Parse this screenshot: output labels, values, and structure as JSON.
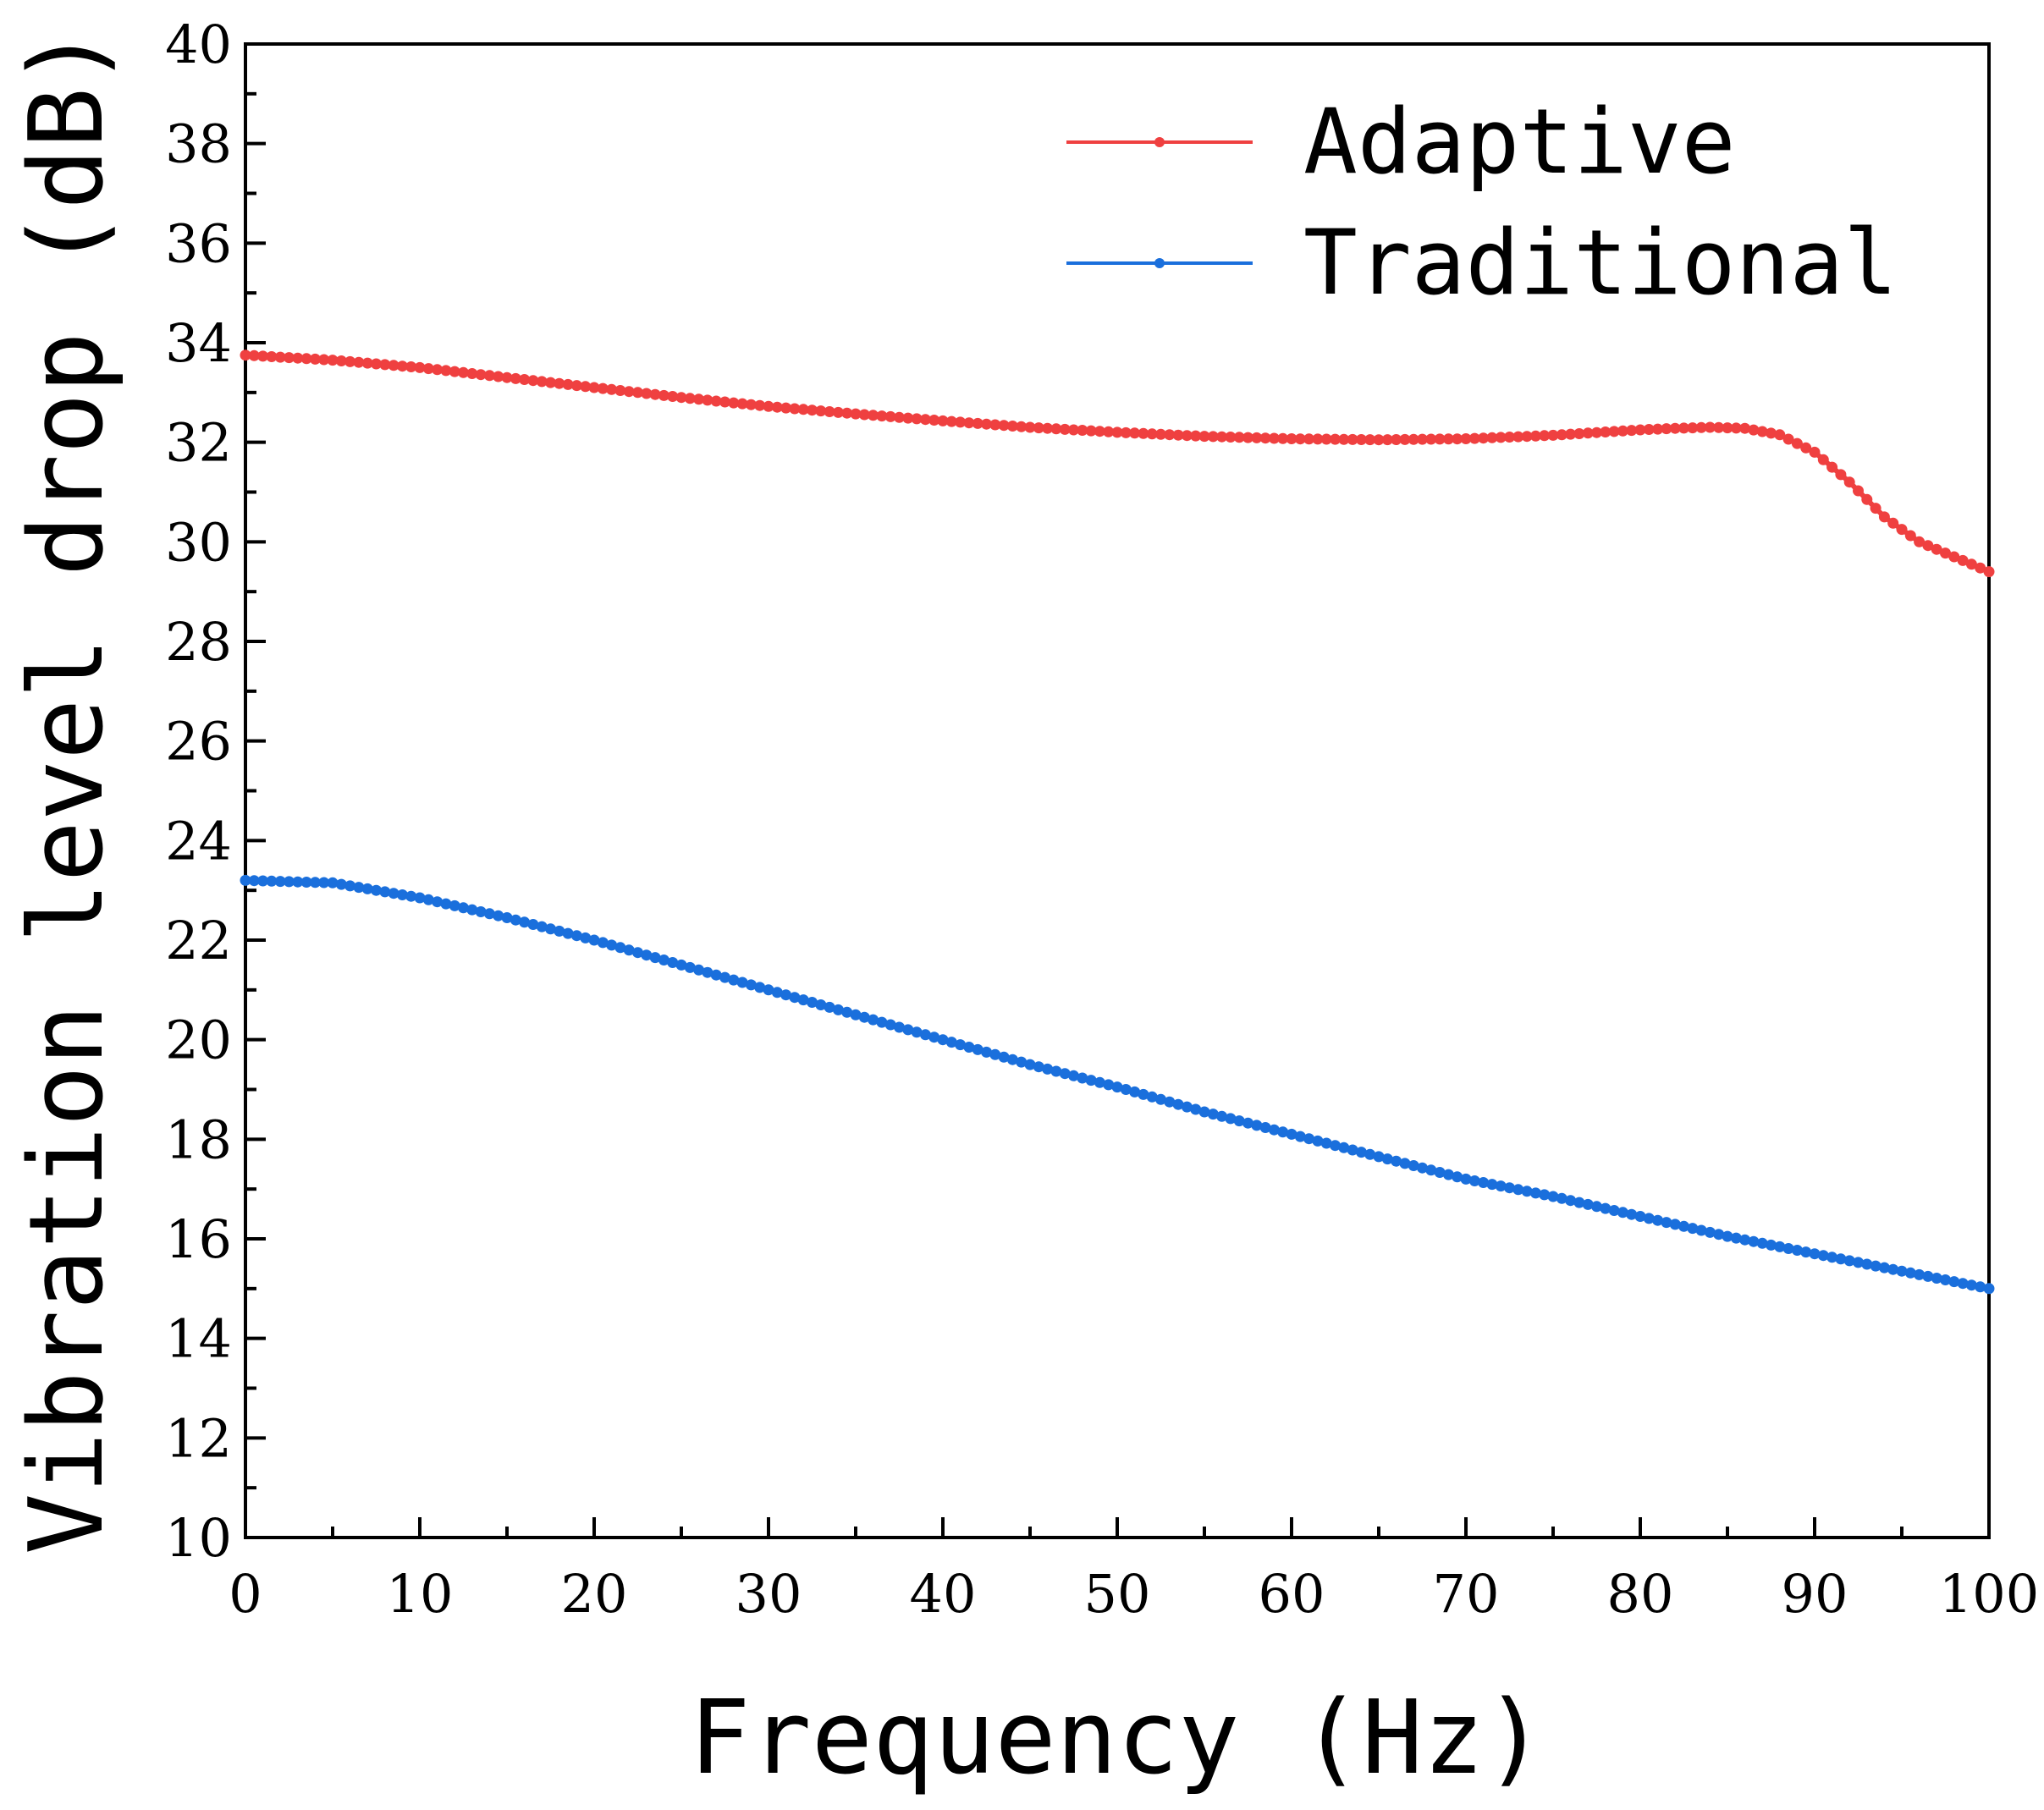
{
  "chart_data": {
    "type": "line",
    "xlabel": "Frequency (Hz)",
    "ylabel": "Vibration level drop (dB)",
    "xlim": [
      0,
      100
    ],
    "ylim": [
      10,
      40
    ],
    "x_ticks": [
      0,
      10,
      20,
      30,
      40,
      50,
      60,
      70,
      80,
      90,
      100
    ],
    "y_ticks": [
      10,
      12,
      14,
      16,
      18,
      20,
      22,
      24,
      26,
      28,
      30,
      32,
      34,
      36,
      38,
      40
    ],
    "x_tick_labels": [
      "0",
      "10",
      "20",
      "30",
      "40",
      "50",
      "60",
      "70",
      "80",
      "90",
      "100"
    ],
    "y_tick_labels": [
      "10",
      "12",
      "14",
      "16",
      "18",
      "20",
      "22",
      "24",
      "26",
      "28",
      "30",
      "32",
      "34",
      "36",
      "38",
      "40"
    ],
    "grid": false,
    "legend_position": "top-right",
    "series": [
      {
        "name": "Adaptive",
        "color": "#ef4040",
        "x": [
          0,
          5,
          10,
          15,
          20,
          25,
          30,
          35,
          40,
          45,
          50,
          55,
          60,
          65,
          70,
          75,
          80,
          82,
          84,
          86,
          88,
          90,
          92,
          94,
          96,
          98,
          100
        ],
        "y": [
          33.75,
          33.65,
          33.5,
          33.3,
          33.1,
          32.9,
          32.72,
          32.57,
          32.43,
          32.3,
          32.2,
          32.12,
          32.07,
          32.05,
          32.07,
          32.14,
          32.25,
          32.28,
          32.3,
          32.28,
          32.15,
          31.8,
          31.2,
          30.5,
          30.0,
          29.7,
          29.4
        ]
      },
      {
        "name": "Traditional",
        "color": "#1a6fdc",
        "x": [
          0,
          5,
          10,
          15,
          20,
          25,
          30,
          35,
          40,
          45,
          50,
          55,
          60,
          65,
          70,
          75,
          80,
          85,
          90,
          95,
          100
        ],
        "y": [
          23.2,
          23.15,
          22.85,
          22.45,
          22.0,
          21.5,
          21.0,
          20.5,
          20.0,
          19.5,
          19.05,
          18.55,
          18.1,
          17.65,
          17.2,
          16.85,
          16.45,
          16.05,
          15.7,
          15.35,
          15.0
        ]
      }
    ]
  }
}
